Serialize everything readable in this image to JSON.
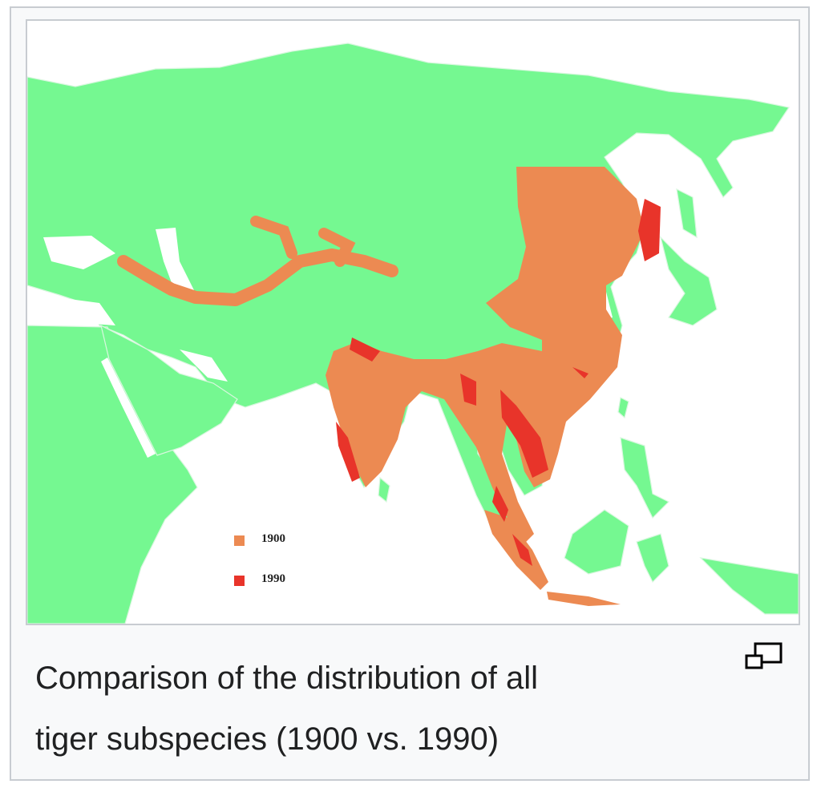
{
  "figure": {
    "caption": "Comparison of the distribution of all tiger subspecies (1900 vs. 1990)",
    "caption_line1": "Comparison of the distribution of all",
    "caption_line2": "tiger subspecies (1900 vs. 1990)",
    "enlarge_icon": "magnify-clip-icon"
  },
  "map": {
    "legend": [
      {
        "label": "1900",
        "color": "#ec8a52"
      },
      {
        "label": "1990",
        "color": "#e8342a"
      }
    ],
    "colors": {
      "land": "#75f891",
      "sea": "#ffffff",
      "borders": "#e8f8ea"
    }
  }
}
